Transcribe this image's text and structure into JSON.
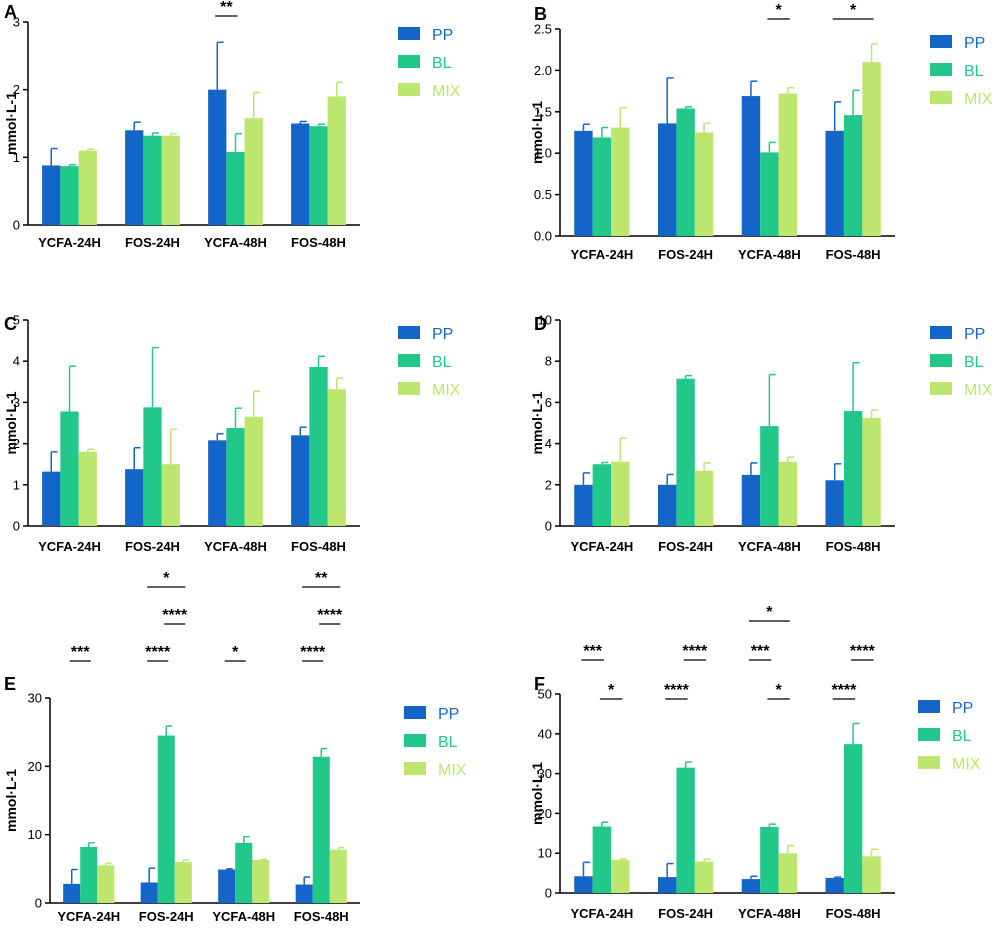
{
  "figure": {
    "colors": {
      "PP": "#1565c8",
      "BL": "#22c88a",
      "MIX": "#bde66f"
    }
  },
  "chart_data": [
    {
      "panel": "A",
      "type": "bar",
      "categories": [
        "YCFA-24H",
        "FOS-24H",
        "YCFA-48H",
        "FOS-48H"
      ],
      "ylabel": "mmol·L-1",
      "ylim": [
        0,
        3
      ],
      "yticks": [
        0,
        1,
        2,
        3
      ],
      "legend": {
        "position": "right",
        "entries": [
          "PP",
          "BL",
          "MIX"
        ]
      },
      "series": [
        {
          "name": "PP",
          "values": [
            0.88,
            1.4,
            2.0,
            1.5
          ],
          "errors": [
            0.25,
            0.12,
            0.7,
            0.03
          ]
        },
        {
          "name": "BL",
          "values": [
            0.87,
            1.32,
            1.08,
            1.46
          ],
          "errors": [
            0.02,
            0.04,
            0.27,
            0.03
          ]
        },
        {
          "name": "MIX",
          "values": [
            1.1,
            1.32,
            1.58,
            1.9
          ],
          "errors": [
            0.02,
            0.03,
            0.38,
            0.21
          ]
        }
      ],
      "significance": [
        {
          "label": "**",
          "category": 2,
          "from": "PP",
          "to": "BL",
          "level": 1
        }
      ]
    },
    {
      "panel": "B",
      "type": "bar",
      "categories": [
        "YCFA-24H",
        "FOS-24H",
        "YCFA-48H",
        "FOS-48H"
      ],
      "ylabel": "mmol·L-1",
      "ylim": [
        0,
        2.5
      ],
      "yticks": [
        "0.0",
        "0.5",
        "1.0",
        "1.5",
        "2.0",
        "2.5"
      ],
      "legend": {
        "position": "right",
        "entries": [
          "PP",
          "BL",
          "MIX"
        ]
      },
      "series": [
        {
          "name": "PP",
          "values": [
            1.27,
            1.36,
            1.69,
            1.27
          ],
          "errors": [
            0.08,
            0.55,
            0.18,
            0.35
          ]
        },
        {
          "name": "BL",
          "values": [
            1.19,
            1.54,
            1.01,
            1.46
          ],
          "errors": [
            0.12,
            0.02,
            0.12,
            0.3
          ]
        },
        {
          "name": "MIX",
          "values": [
            1.31,
            1.25,
            1.72,
            2.1
          ],
          "errors": [
            0.24,
            0.11,
            0.07,
            0.22
          ]
        }
      ],
      "significance": [
        {
          "label": "*",
          "category": 2,
          "from": "BL",
          "to": "MIX",
          "level": 1
        },
        {
          "label": "*",
          "category": 3,
          "from": "PP",
          "to": "MIX",
          "level": 1
        }
      ]
    },
    {
      "panel": "C",
      "type": "bar",
      "categories": [
        "YCFA-24H",
        "FOS-24H",
        "YCFA-48H",
        "FOS-48H"
      ],
      "ylabel": "mmol·L-1",
      "ylim": [
        0,
        5
      ],
      "yticks": [
        0,
        1,
        2,
        3,
        4,
        5
      ],
      "legend": {
        "position": "right",
        "entries": [
          "PP",
          "BL",
          "MIX"
        ]
      },
      "series": [
        {
          "name": "PP",
          "values": [
            1.32,
            1.38,
            2.08,
            2.2
          ],
          "errors": [
            0.48,
            0.52,
            0.16,
            0.2
          ]
        },
        {
          "name": "BL",
          "values": [
            2.78,
            2.88,
            2.38,
            3.86
          ],
          "errors": [
            1.1,
            1.45,
            0.48,
            0.26
          ]
        },
        {
          "name": "MIX",
          "values": [
            1.8,
            1.5,
            2.65,
            3.32
          ],
          "errors": [
            0.06,
            0.85,
            0.62,
            0.27
          ]
        }
      ],
      "significance": []
    },
    {
      "panel": "D",
      "type": "bar",
      "categories": [
        "YCFA-24H",
        "FOS-24H",
        "YCFA-48H",
        "FOS-48H"
      ],
      "ylabel": "mmol·L-1",
      "ylim": [
        0,
        10
      ],
      "yticks": [
        0,
        2,
        4,
        6,
        8,
        10
      ],
      "legend": {
        "position": "right",
        "entries": [
          "PP",
          "BL",
          "MIX"
        ]
      },
      "series": [
        {
          "name": "PP",
          "values": [
            2.0,
            2.0,
            2.48,
            2.22
          ],
          "errors": [
            0.58,
            0.5,
            0.58,
            0.8
          ]
        },
        {
          "name": "BL",
          "values": [
            3.0,
            7.15,
            4.85,
            5.58
          ],
          "errors": [
            0.08,
            0.15,
            2.5,
            2.35
          ]
        },
        {
          "name": "MIX",
          "values": [
            3.12,
            2.68,
            3.12,
            5.25
          ],
          "errors": [
            1.15,
            0.38,
            0.22,
            0.38
          ]
        }
      ],
      "significance": []
    },
    {
      "panel": "E",
      "type": "bar",
      "categories": [
        "YCFA-24H",
        "FOS-24H",
        "YCFA-48H",
        "FOS-48H"
      ],
      "ylabel": "mmol·L-1",
      "ylim": [
        0,
        30
      ],
      "yticks": [
        0,
        10,
        20,
        30
      ],
      "legend": {
        "position": "right",
        "entries": [
          "PP",
          "BL",
          "MIX"
        ]
      },
      "series": [
        {
          "name": "PP",
          "values": [
            2.8,
            3.0,
            4.9,
            2.7
          ],
          "errors": [
            2.1,
            2.1,
            0.1,
            1.1
          ]
        },
        {
          "name": "BL",
          "values": [
            8.2,
            24.5,
            8.8,
            21.4
          ],
          "errors": [
            0.6,
            1.4,
            0.9,
            1.2
          ]
        },
        {
          "name": "MIX",
          "values": [
            5.5,
            6.0,
            6.3,
            7.8
          ],
          "errors": [
            0.3,
            0.3,
            0.1,
            0.3
          ]
        }
      ],
      "significance": [
        {
          "label": "***",
          "category": 0,
          "from": "PP",
          "to": "BL",
          "level": 1
        },
        {
          "label": "****",
          "category": 1,
          "from": "PP",
          "to": "BL",
          "level": 1
        },
        {
          "label": "****",
          "category": 1,
          "from": "BL",
          "to": "MIX",
          "level": 2
        },
        {
          "label": "*",
          "category": 1,
          "from": "PP",
          "to": "MIX",
          "level": 3
        },
        {
          "label": "*",
          "category": 2,
          "from": "PP",
          "to": "BL",
          "level": 1
        },
        {
          "label": "****",
          "category": 3,
          "from": "PP",
          "to": "BL",
          "level": 1
        },
        {
          "label": "****",
          "category": 3,
          "from": "BL",
          "to": "MIX",
          "level": 2
        },
        {
          "label": "**",
          "category": 3,
          "from": "PP",
          "to": "MIX",
          "level": 3
        }
      ]
    },
    {
      "panel": "F",
      "type": "bar",
      "categories": [
        "YCFA-24H",
        "FOS-24H",
        "YCFA-48H",
        "FOS-48H"
      ],
      "ylabel": "mmol·L-1",
      "ylim": [
        0,
        50
      ],
      "yticks": [
        0,
        10,
        20,
        30,
        40,
        50
      ],
      "legend": {
        "position": "right",
        "entries": [
          "PP",
          "BL",
          "MIX"
        ]
      },
      "series": [
        {
          "name": "PP",
          "values": [
            4.2,
            4.0,
            3.5,
            3.8
          ],
          "errors": [
            3.5,
            3.4,
            0.7,
            0.2
          ]
        },
        {
          "name": "BL",
          "values": [
            16.7,
            31.5,
            16.6,
            37.4
          ],
          "errors": [
            1.1,
            1.4,
            0.7,
            5.2
          ]
        },
        {
          "name": "MIX",
          "values": [
            8.3,
            7.9,
            10.0,
            9.2
          ],
          "errors": [
            0.3,
            0.6,
            1.9,
            1.8
          ]
        }
      ],
      "significance": [
        {
          "label": "***",
          "category": 0,
          "from": "PP",
          "to": "BL",
          "level": 1
        },
        {
          "label": "*",
          "category": 0,
          "from": "BL",
          "to": "MIX",
          "level": 0
        },
        {
          "label": "****",
          "category": 1,
          "from": "PP",
          "to": "BL",
          "level": 0
        },
        {
          "label": "****",
          "category": 1,
          "from": "BL",
          "to": "MIX",
          "level": 1
        },
        {
          "label": "***",
          "category": 2,
          "from": "PP",
          "to": "BL",
          "level": 1
        },
        {
          "label": "*",
          "category": 2,
          "from": "BL",
          "to": "MIX",
          "level": 0
        },
        {
          "label": "*",
          "category": 2,
          "from": "PP",
          "to": "MIX",
          "level": 2
        },
        {
          "label": "****",
          "category": 3,
          "from": "PP",
          "to": "BL",
          "level": 0
        },
        {
          "label": "****",
          "category": 3,
          "from": "BL",
          "to": "MIX",
          "level": 1
        }
      ]
    }
  ]
}
